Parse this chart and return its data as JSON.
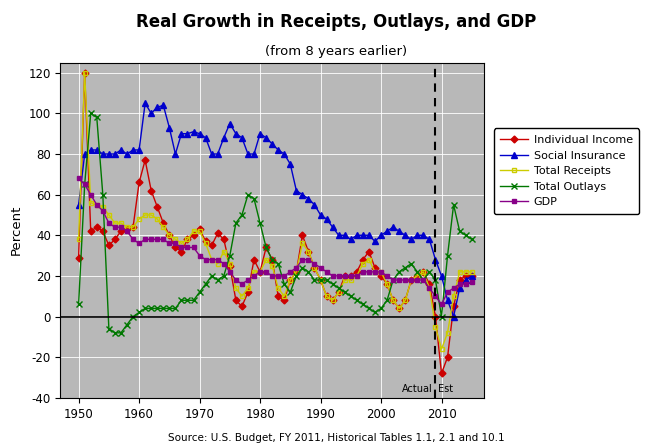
{
  "title": "Real Growth in Receipts, Outlays, and GDP",
  "subtitle": "(from 8 years earlier)",
  "ylabel": "Percent",
  "source": "Source: U.S. Budget, FY 2011, Historical Tables 1.1, 2.1 and 10.1",
  "xlim": [
    1947,
    2017
  ],
  "ylim": [
    -40,
    125
  ],
  "yticks": [
    -40,
    -20,
    0,
    20,
    40,
    60,
    80,
    100,
    120
  ],
  "xticks": [
    1950,
    1960,
    1970,
    1980,
    1990,
    2000,
    2010
  ],
  "dashed_vline": 2009,
  "background_color": "#b8b8b8",
  "fig_background": "#ffffff",
  "series": {
    "Individual Income": {
      "color": "#cc0000",
      "marker": "D",
      "markersize": 3.5,
      "years": [
        1950,
        1951,
        1952,
        1953,
        1954,
        1955,
        1956,
        1957,
        1958,
        1959,
        1960,
        1961,
        1962,
        1963,
        1964,
        1965,
        1966,
        1967,
        1968,
        1969,
        1970,
        1971,
        1972,
        1973,
        1974,
        1975,
        1976,
        1977,
        1978,
        1979,
        1980,
        1981,
        1982,
        1983,
        1984,
        1985,
        1986,
        1987,
        1988,
        1989,
        1990,
        1991,
        1992,
        1993,
        1994,
        1995,
        1996,
        1997,
        1998,
        1999,
        2000,
        2001,
        2002,
        2003,
        2004,
        2005,
        2006,
        2007,
        2008,
        2009,
        2010,
        2011,
        2012,
        2013,
        2014,
        2015
      ],
      "values": [
        29,
        120,
        42,
        44,
        42,
        35,
        38,
        42,
        43,
        44,
        66,
        77,
        62,
        54,
        46,
        40,
        34,
        32,
        38,
        40,
        43,
        37,
        35,
        41,
        38,
        25,
        8,
        5,
        12,
        28,
        22,
        34,
        28,
        10,
        8,
        18,
        22,
        40,
        32,
        24,
        18,
        10,
        8,
        12,
        20,
        20,
        22,
        28,
        32,
        24,
        20,
        16,
        8,
        4,
        8,
        18,
        20,
        22,
        16,
        0,
        -28,
        -20,
        5,
        18,
        20,
        20
      ],
      "linewidth": 1.0
    },
    "Social Insurance": {
      "color": "#0000cc",
      "marker": "^",
      "markersize": 4.5,
      "years": [
        1950,
        1951,
        1952,
        1953,
        1954,
        1955,
        1956,
        1957,
        1958,
        1959,
        1960,
        1961,
        1962,
        1963,
        1964,
        1965,
        1966,
        1967,
        1968,
        1969,
        1970,
        1971,
        1972,
        1973,
        1974,
        1975,
        1976,
        1977,
        1978,
        1979,
        1980,
        1981,
        1982,
        1983,
        1984,
        1985,
        1986,
        1987,
        1988,
        1989,
        1990,
        1991,
        1992,
        1993,
        1994,
        1995,
        1996,
        1997,
        1998,
        1999,
        2000,
        2001,
        2002,
        2003,
        2004,
        2005,
        2006,
        2007,
        2008,
        2009,
        2010,
        2011,
        2012,
        2013,
        2014,
        2015
      ],
      "values": [
        55,
        80,
        82,
        82,
        80,
        80,
        80,
        82,
        80,
        82,
        82,
        105,
        100,
        103,
        104,
        93,
        80,
        90,
        90,
        91,
        90,
        88,
        80,
        80,
        88,
        95,
        90,
        88,
        80,
        80,
        90,
        88,
        85,
        82,
        80,
        75,
        62,
        60,
        58,
        55,
        50,
        48,
        44,
        40,
        40,
        38,
        40,
        40,
        40,
        37,
        40,
        42,
        44,
        42,
        40,
        38,
        40,
        40,
        38,
        28,
        20,
        8,
        0,
        14,
        18,
        20
      ],
      "linewidth": 1.0
    },
    "Total Receipts": {
      "color": "#cccc00",
      "marker": "s",
      "markersize": 3.5,
      "markerfacecolor": "none",
      "years": [
        1950,
        1951,
        1952,
        1953,
        1954,
        1955,
        1956,
        1957,
        1958,
        1959,
        1960,
        1961,
        1962,
        1963,
        1964,
        1965,
        1966,
        1967,
        1968,
        1969,
        1970,
        1971,
        1972,
        1973,
        1974,
        1975,
        1976,
        1977,
        1978,
        1979,
        1980,
        1981,
        1982,
        1983,
        1984,
        1985,
        1986,
        1987,
        1988,
        1989,
        1990,
        1991,
        1992,
        1993,
        1994,
        1995,
        1996,
        1997,
        1998,
        1999,
        2000,
        2001,
        2002,
        2003,
        2004,
        2005,
        2006,
        2007,
        2008,
        2009,
        2010,
        2011,
        2012,
        2013,
        2014,
        2015
      ],
      "values": [
        38,
        120,
        56,
        55,
        54,
        50,
        46,
        46,
        44,
        44,
        48,
        50,
        50,
        48,
        44,
        40,
        38,
        36,
        38,
        42,
        42,
        36,
        28,
        26,
        32,
        26,
        14,
        10,
        14,
        22,
        22,
        28,
        25,
        14,
        10,
        18,
        22,
        36,
        32,
        24,
        18,
        10,
        8,
        12,
        18,
        18,
        20,
        26,
        28,
        22,
        22,
        16,
        8,
        4,
        8,
        18,
        20,
        22,
        14,
        -5,
        -16,
        -8,
        10,
        22,
        22,
        22
      ],
      "linewidth": 1.0
    },
    "Total Outlays": {
      "color": "#007700",
      "marker": "x",
      "markersize": 5,
      "markerfacecolor": "none",
      "years": [
        1950,
        1951,
        1952,
        1953,
        1954,
        1955,
        1956,
        1957,
        1958,
        1959,
        1960,
        1961,
        1962,
        1963,
        1964,
        1965,
        1966,
        1967,
        1968,
        1969,
        1970,
        1971,
        1972,
        1973,
        1974,
        1975,
        1976,
        1977,
        1978,
        1979,
        1980,
        1981,
        1982,
        1983,
        1984,
        1985,
        1986,
        1987,
        1988,
        1989,
        1990,
        1991,
        1992,
        1993,
        1994,
        1995,
        1996,
        1997,
        1998,
        1999,
        2000,
        2001,
        2002,
        2003,
        2004,
        2005,
        2006,
        2007,
        2008,
        2009,
        2010,
        2011,
        2012,
        2013,
        2014,
        2015
      ],
      "values": [
        6,
        65,
        100,
        98,
        60,
        -6,
        -8,
        -8,
        -4,
        0,
        2,
        4,
        4,
        4,
        4,
        4,
        4,
        8,
        8,
        8,
        12,
        16,
        20,
        18,
        20,
        30,
        46,
        50,
        60,
        58,
        46,
        34,
        28,
        26,
        16,
        12,
        20,
        24,
        22,
        18,
        18,
        18,
        16,
        14,
        12,
        10,
        8,
        6,
        4,
        2,
        4,
        8,
        18,
        22,
        24,
        26,
        22,
        18,
        22,
        18,
        0,
        30,
        55,
        42,
        40,
        38
      ],
      "linewidth": 1.0
    },
    "GDP": {
      "color": "#880088",
      "marker": "s",
      "markersize": 3.5,
      "markerfacecolor": "#880088",
      "years": [
        1950,
        1951,
        1952,
        1953,
        1954,
        1955,
        1956,
        1957,
        1958,
        1959,
        1960,
        1961,
        1962,
        1963,
        1964,
        1965,
        1966,
        1967,
        1968,
        1969,
        1970,
        1971,
        1972,
        1973,
        1974,
        1975,
        1976,
        1977,
        1978,
        1979,
        1980,
        1981,
        1982,
        1983,
        1984,
        1985,
        1986,
        1987,
        1988,
        1989,
        1990,
        1991,
        1992,
        1993,
        1994,
        1995,
        1996,
        1997,
        1998,
        1999,
        2000,
        2001,
        2002,
        2003,
        2004,
        2005,
        2006,
        2007,
        2008,
        2009,
        2010,
        2011,
        2012,
        2013,
        2014,
        2015
      ],
      "values": [
        68,
        65,
        60,
        55,
        52,
        46,
        44,
        44,
        42,
        38,
        36,
        38,
        38,
        38,
        38,
        36,
        36,
        34,
        34,
        34,
        30,
        28,
        28,
        28,
        26,
        22,
        18,
        16,
        18,
        20,
        22,
        22,
        20,
        20,
        20,
        22,
        24,
        28,
        28,
        26,
        24,
        22,
        20,
        20,
        20,
        20,
        20,
        22,
        22,
        22,
        22,
        20,
        18,
        18,
        18,
        18,
        18,
        18,
        14,
        10,
        6,
        12,
        14,
        16,
        16,
        17
      ],
      "linewidth": 1.0
    }
  },
  "legend": {
    "Individual Income": "Individual Income",
    "Social Insurance": "Social Insurance",
    "Total Receipts": "Total Receipts",
    "Total Outlays": "Total Outlays",
    "GDP": "GDP"
  }
}
